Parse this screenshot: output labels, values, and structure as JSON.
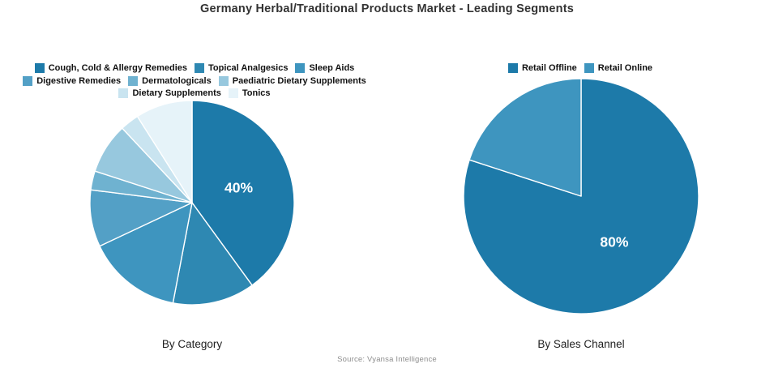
{
  "title": "Germany Herbal/Traditional Products Market - Leading Segments",
  "source": "Source: Vyansa Intelligence",
  "accent_color": "#1d7aa9",
  "chart_data": [
    {
      "type": "pie",
      "name": "by-category",
      "caption": "By Category",
      "legend_position": "top",
      "start_angle": 0,
      "direction": "clockwise",
      "slices": [
        {
          "label": "Cough, Cold & Allergy Remedies",
          "value": 40,
          "color": "#1d7aa9",
          "pct_label": "40%"
        },
        {
          "label": "Topical Analgesics",
          "value": 13,
          "color": "#2e88b2",
          "pct_label": ""
        },
        {
          "label": "Sleep Aids",
          "value": 15,
          "color": "#3e95bf",
          "pct_label": ""
        },
        {
          "label": "Digestive Remedies",
          "value": 9,
          "color": "#53a0c6",
          "pct_label": ""
        },
        {
          "label": "Dermatologicals",
          "value": 3,
          "color": "#6fb2d0",
          "pct_label": ""
        },
        {
          "label": "Paediatric Dietary Supplements",
          "value": 8,
          "color": "#97c8de",
          "pct_label": ""
        },
        {
          "label": "Dietary Supplements",
          "value": 3,
          "color": "#c9e4f0",
          "pct_label": ""
        },
        {
          "label": "Tonics",
          "value": 9,
          "color": "#e6f3f9",
          "pct_label": ""
        }
      ]
    },
    {
      "type": "pie",
      "name": "by-sales-channel",
      "caption": "By Sales Channel",
      "legend_position": "top",
      "start_angle": 0,
      "direction": "clockwise",
      "slices": [
        {
          "label": "Retail Offline",
          "value": 80,
          "color": "#1d7aa9",
          "pct_label": "80%"
        },
        {
          "label": "Retail Online",
          "value": 20,
          "color": "#3e95bf",
          "pct_label": ""
        }
      ]
    }
  ]
}
